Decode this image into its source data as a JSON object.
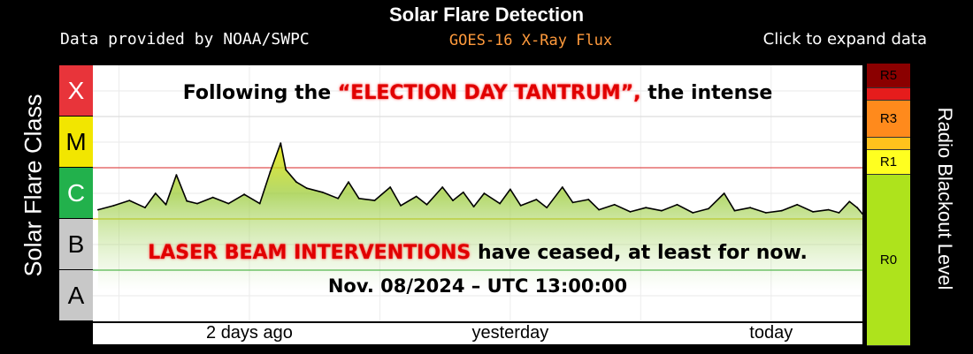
{
  "header": {
    "title": "Solar Flare Detection",
    "credit": "Data provided by NOAA/SWPC",
    "subtitle": "GOES-16 X-Ray Flux",
    "expand": "Click to expand data"
  },
  "axes": {
    "ylabel": "Solar Flare Class",
    "rlabel": "Radio Blackout Level"
  },
  "flare_classes": [
    {
      "label": "X",
      "color": "#e8343a",
      "text_color": "#ffffff"
    },
    {
      "label": "M",
      "color": "#f2e600",
      "text_color": "#000000"
    },
    {
      "label": "C",
      "color": "#22b14c",
      "text_color": "#ffffff"
    },
    {
      "label": "B",
      "color": "#c8c8c8",
      "text_color": "#000000"
    },
    {
      "label": "A",
      "color": "#c8c8c8",
      "text_color": "#000000"
    }
  ],
  "radio_blackout": [
    {
      "label": "R5",
      "color": "#8b0000"
    },
    {
      "label": "",
      "color": "#e61c1c"
    },
    {
      "label": "R3",
      "color": "#ff8a1c"
    },
    {
      "label": "",
      "color": "#ffc21c"
    },
    {
      "label": "R1",
      "color": "#ffff20"
    },
    {
      "label": "R0",
      "color": "#aee31c"
    }
  ],
  "overlay": {
    "line1_pre": "Following the ",
    "line1_highlight": "“ELECTION DAY TANTRUM”,",
    "line1_post": " the intense",
    "line2_highlight": "LASER BEAM INTERVENTIONS",
    "line2_post": " have ceased, at least for now.",
    "line3": "Nov. 08/2024 – UTC 13:00:00"
  },
  "chart_data": {
    "type": "line",
    "title": "Solar Flare Detection",
    "subtitle": "GOES-16 X-Ray Flux",
    "xlabel": "",
    "ylabel": "Solar Flare Class",
    "x_ticks": [
      "2 days ago",
      "yesterday",
      "today"
    ],
    "y_scale": "log",
    "y_classes": [
      "A",
      "B",
      "C",
      "M",
      "X"
    ],
    "ylim_class": [
      0,
      5
    ],
    "x_range_days": [
      -2.6,
      0.35
    ],
    "grid": true,
    "series": [
      {
        "name": "",
        "color": "#000000",
        "points": [
          [
            -2.58,
            2.18
          ],
          [
            -2.52,
            2.26
          ],
          [
            -2.46,
            2.36
          ],
          [
            -2.4,
            2.22
          ],
          [
            -2.36,
            2.5
          ],
          [
            -2.32,
            2.28
          ],
          [
            -2.28,
            2.86
          ],
          [
            -2.24,
            2.35
          ],
          [
            -2.2,
            2.3
          ],
          [
            -2.14,
            2.42
          ],
          [
            -2.08,
            2.3
          ],
          [
            -2.02,
            2.48
          ],
          [
            -1.96,
            2.3
          ],
          [
            -1.92,
            2.92
          ],
          [
            -1.88,
            3.48
          ],
          [
            -1.86,
            2.96
          ],
          [
            -1.82,
            2.72
          ],
          [
            -1.78,
            2.6
          ],
          [
            -1.72,
            2.52
          ],
          [
            -1.66,
            2.4
          ],
          [
            -1.62,
            2.72
          ],
          [
            -1.58,
            2.4
          ],
          [
            -1.52,
            2.36
          ],
          [
            -1.46,
            2.62
          ],
          [
            -1.42,
            2.26
          ],
          [
            -1.36,
            2.44
          ],
          [
            -1.32,
            2.28
          ],
          [
            -1.26,
            2.62
          ],
          [
            -1.22,
            2.36
          ],
          [
            -1.18,
            2.52
          ],
          [
            -1.14,
            2.24
          ],
          [
            -1.1,
            2.5
          ],
          [
            -1.04,
            2.3
          ],
          [
            -1.0,
            2.58
          ],
          [
            -0.96,
            2.26
          ],
          [
            -0.9,
            2.38
          ],
          [
            -0.86,
            2.22
          ],
          [
            -0.8,
            2.62
          ],
          [
            -0.76,
            2.32
          ],
          [
            -0.7,
            2.38
          ],
          [
            -0.66,
            2.18
          ],
          [
            -0.6,
            2.28
          ],
          [
            -0.54,
            2.14
          ],
          [
            -0.48,
            2.22
          ],
          [
            -0.42,
            2.16
          ],
          [
            -0.36,
            2.28
          ],
          [
            -0.3,
            2.12
          ],
          [
            -0.24,
            2.2
          ],
          [
            -0.18,
            2.5
          ],
          [
            -0.14,
            2.16
          ],
          [
            -0.08,
            2.22
          ],
          [
            -0.02,
            2.12
          ],
          [
            0.04,
            2.16
          ],
          [
            0.1,
            2.28
          ],
          [
            0.16,
            2.14
          ],
          [
            0.22,
            2.18
          ],
          [
            0.26,
            2.12
          ],
          [
            0.3,
            2.34
          ],
          [
            0.33,
            2.22
          ],
          [
            0.35,
            2.1
          ]
        ]
      }
    ]
  }
}
